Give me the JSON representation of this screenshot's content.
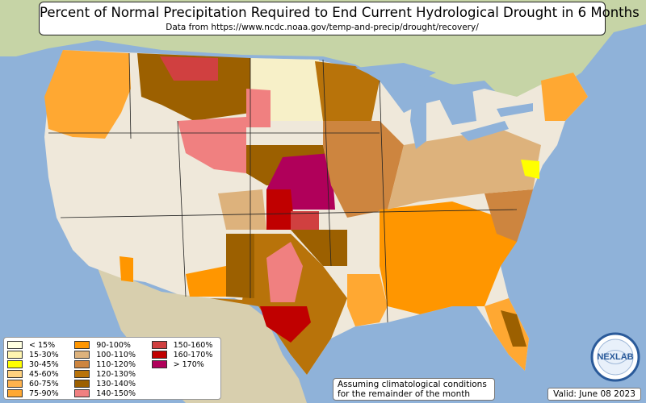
{
  "title": "Percent of Normal Precipitation Required to End Current Hydrological Drought in 6 Months",
  "subtitle": "Data from https://www.ncdc.noaa.gov/temp-and-precip/drought/recovery/",
  "legend": [
    {
      "label": "< 15%",
      "color": "#ffffe0"
    },
    {
      "label": "15-30%",
      "color": "#fff5b0"
    },
    {
      "label": "30-45%",
      "color": "#ffff00"
    },
    {
      "label": "45-60%",
      "color": "#ffd27f"
    },
    {
      "label": "60-75%",
      "color": "#ffb34d"
    },
    {
      "label": "75-90%",
      "color": "#ffa832"
    },
    {
      "label": "90-100%",
      "color": "#ff9600"
    },
    {
      "label": "100-110%",
      "color": "#ddb27c"
    },
    {
      "label": "110-120%",
      "color": "#cd853f"
    },
    {
      "label": "120-130%",
      "color": "#b8730a"
    },
    {
      "label": "130-140%",
      "color": "#9c6000"
    },
    {
      "label": "140-150%",
      "color": "#f08080"
    },
    {
      "label": "150-160%",
      "color": "#d04040"
    },
    {
      "label": "160-170%",
      "color": "#c00000"
    },
    {
      "label": "> 170%",
      "color": "#b0005a"
    }
  ],
  "note": {
    "line1": "Assuming climatological conditions",
    "line2": "for the remainder of the month"
  },
  "valid": "Valid: June 08 2023",
  "logo_text": "NEXLAB",
  "colors": {
    "ocean": "#8fb2d9",
    "land_us": "#efe8da",
    "land_other": "#c8d6a8",
    "lakes": "#8fb2d9"
  }
}
